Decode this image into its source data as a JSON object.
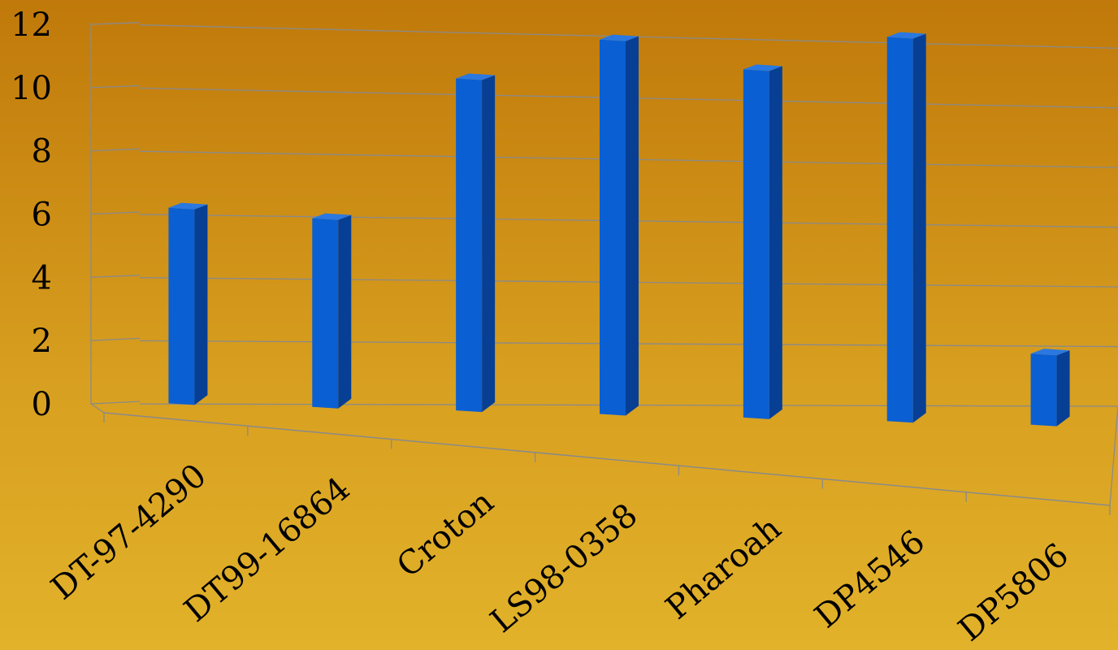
{
  "chart_data": {
    "type": "bar",
    "style": "3d-column",
    "categories": [
      "DT-97-4290",
      "DT99-16864",
      "Croton",
      "LS98-0358",
      "Pharoah",
      "DP4546",
      "DP5806"
    ],
    "values": [
      6.2,
      6.0,
      10.6,
      12.0,
      11.2,
      12.4,
      2.3
    ],
    "y_ticks": [
      "0",
      "2",
      "4",
      "6",
      "8",
      "10",
      "12"
    ],
    "ylim": [
      0,
      12
    ],
    "grid": true,
    "title": "",
    "xlabel": "",
    "ylabel": "",
    "colors": {
      "bar_front": "#0a5fd2",
      "bar_side": "#073f94",
      "bar_top": "#2a78e0",
      "grid": "#8a8a8a"
    }
  }
}
